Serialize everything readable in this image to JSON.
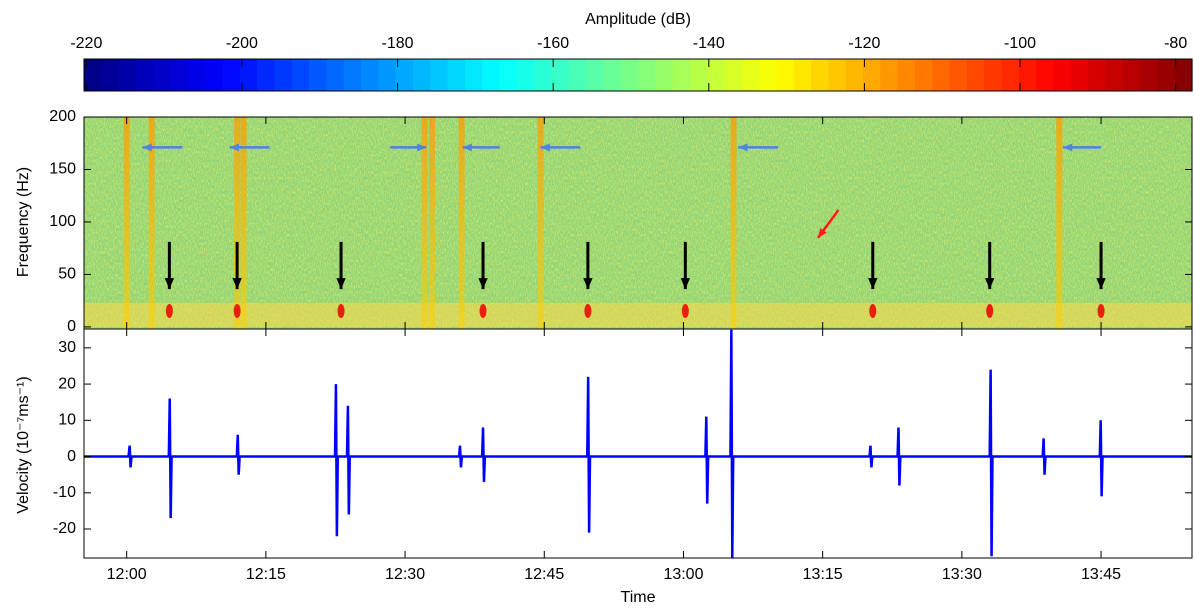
{
  "chart_data": [
    {
      "type": "colorbar",
      "title": "Amplitude (dB)",
      "xlim": [
        -220.3,
        -77.9
      ],
      "xticks": [
        -220,
        -200,
        -180,
        -160,
        -140,
        -120,
        -100,
        -80
      ],
      "colormap": [
        "#000080",
        "#0000ff",
        "#0080ff",
        "#00ffff",
        "#80ff80",
        "#ffff00",
        "#ff8000",
        "#ff0000",
        "#800000"
      ]
    },
    {
      "type": "spectrogram",
      "ylabel": "Frequency (Hz)",
      "xlim": [
        715.4,
        834.8
      ],
      "ylim": [
        -2,
        200
      ],
      "yticks": [
        0,
        50,
        100,
        150,
        200
      ],
      "xticks": [
        720,
        735,
        750,
        765,
        780,
        795,
        810,
        825
      ],
      "bursts": [
        720.0,
        722.7,
        731.9,
        732.6,
        752.1,
        752.9,
        756.1,
        764.6,
        785.4,
        820.5
      ],
      "black_arrows": {
        "color": "#000000",
        "x": [
          724.6,
          731.9,
          743.1,
          758.4,
          769.7,
          780.2,
          800.4,
          813.0,
          825.0
        ],
        "from": 81,
        "to": 36
      },
      "blue_arrows": {
        "color": "#4f81e8",
        "y": 171,
        "pairs": [
          [
            726.0,
            721.7
          ],
          [
            735.4,
            731.1
          ],
          [
            748.4,
            752.3
          ],
          [
            760.2,
            756.2
          ],
          [
            768.9,
            764.6
          ],
          [
            790.2,
            785.9
          ],
          [
            825.0,
            820.9
          ]
        ]
      },
      "red_arrow": {
        "color": "#ff1a1a",
        "from": [
          796.7,
          111.4
        ],
        "to": [
          794.5,
          84.8
        ]
      }
    },
    {
      "type": "line",
      "xlabel": "Time",
      "ylabel": "Velocity (10⁻⁷ms⁻¹)",
      "xlim": [
        715.4,
        834.8
      ],
      "ylim": [
        -28,
        35.2
      ],
      "yticks": [
        -20,
        -10,
        0,
        10,
        20,
        30
      ],
      "xticks": [
        {
          "value": 720,
          "label": "12:00"
        },
        {
          "value": 735,
          "label": "12:15"
        },
        {
          "value": 750,
          "label": "12:30"
        },
        {
          "value": 765,
          "label": "12:45"
        },
        {
          "value": 780,
          "label": "13:00"
        },
        {
          "value": 795,
          "label": "13:15"
        },
        {
          "value": 810,
          "label": "13:30"
        },
        {
          "value": 825,
          "label": "13:45"
        }
      ],
      "series": [
        {
          "color": "#0000ff",
          "x": [
            715.4,
            720.2,
            720.32,
            720.42,
            720.52,
            724.54,
            724.64,
            724.74,
            724.84,
            731.87,
            731.97,
            732.07,
            732.17,
            742.45,
            742.55,
            742.65,
            742.75,
            743.74,
            743.84,
            743.94,
            744.04,
            755.82,
            755.92,
            756.02,
            756.12,
            758.3,
            758.4,
            758.5,
            758.6,
            769.63,
            769.73,
            769.83,
            769.93,
            782.36,
            782.46,
            782.56,
            782.66,
            785.06,
            785.16,
            785.26,
            785.36,
            800.05,
            800.15,
            800.25,
            800.35,
            803.07,
            803.17,
            803.27,
            803.37,
            813.0,
            813.1,
            813.2,
            813.3,
            818.71,
            818.81,
            818.91,
            819.01,
            824.86,
            824.96,
            825.06,
            825.16,
            834.8
          ],
          "values": [
            0,
            0,
            3,
            -3,
            0,
            0,
            16,
            -17,
            0,
            0,
            6,
            -5,
            0,
            0,
            20,
            -22,
            0,
            0,
            14,
            -16,
            0,
            0,
            3,
            -3,
            0,
            0,
            8,
            -7,
            0,
            0,
            22,
            -21,
            0,
            0,
            11,
            -13,
            0,
            0,
            35,
            -28,
            0,
            0,
            3,
            -3,
            0,
            0,
            8,
            -8,
            0,
            0,
            24,
            -27.5,
            0,
            0,
            5,
            -5,
            0,
            0,
            10,
            -11,
            0,
            0
          ]
        }
      ]
    }
  ]
}
